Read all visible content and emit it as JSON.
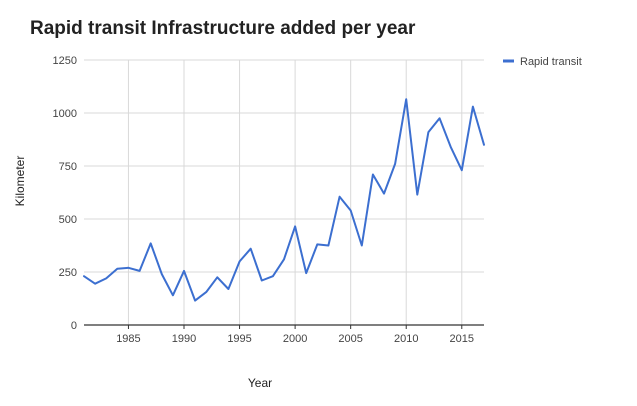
{
  "chart_data": {
    "type": "line",
    "title": "Rapid transit Infrastructure added per year",
    "xlabel": "Year",
    "ylabel": "Kilometer",
    "xlim": [
      1981,
      2017
    ],
    "ylim": [
      0,
      1250
    ],
    "xticks": [
      1985,
      1990,
      1995,
      2000,
      2005,
      2010,
      2015
    ],
    "yticks": [
      0,
      250,
      500,
      750,
      1000,
      1250
    ],
    "grid": true,
    "legend_position": "top-right",
    "series": [
      {
        "name": "Rapid transit",
        "color": "#3c6fd0",
        "x": [
          1981,
          1982,
          1983,
          1984,
          1985,
          1986,
          1987,
          1988,
          1989,
          1990,
          1991,
          1992,
          1993,
          1994,
          1995,
          1996,
          1997,
          1998,
          1999,
          2000,
          2001,
          2002,
          2003,
          2004,
          2005,
          2006,
          2007,
          2008,
          2009,
          2010,
          2011,
          2012,
          2013,
          2014,
          2015,
          2016,
          2017
        ],
        "y": [
          230,
          195,
          220,
          265,
          270,
          255,
          385,
          240,
          140,
          255,
          115,
          155,
          225,
          170,
          300,
          360,
          210,
          230,
          310,
          465,
          245,
          380,
          375,
          605,
          540,
          375,
          710,
          620,
          760,
          1065,
          615,
          910,
          975,
          840,
          730,
          1030,
          850
        ]
      }
    ]
  }
}
